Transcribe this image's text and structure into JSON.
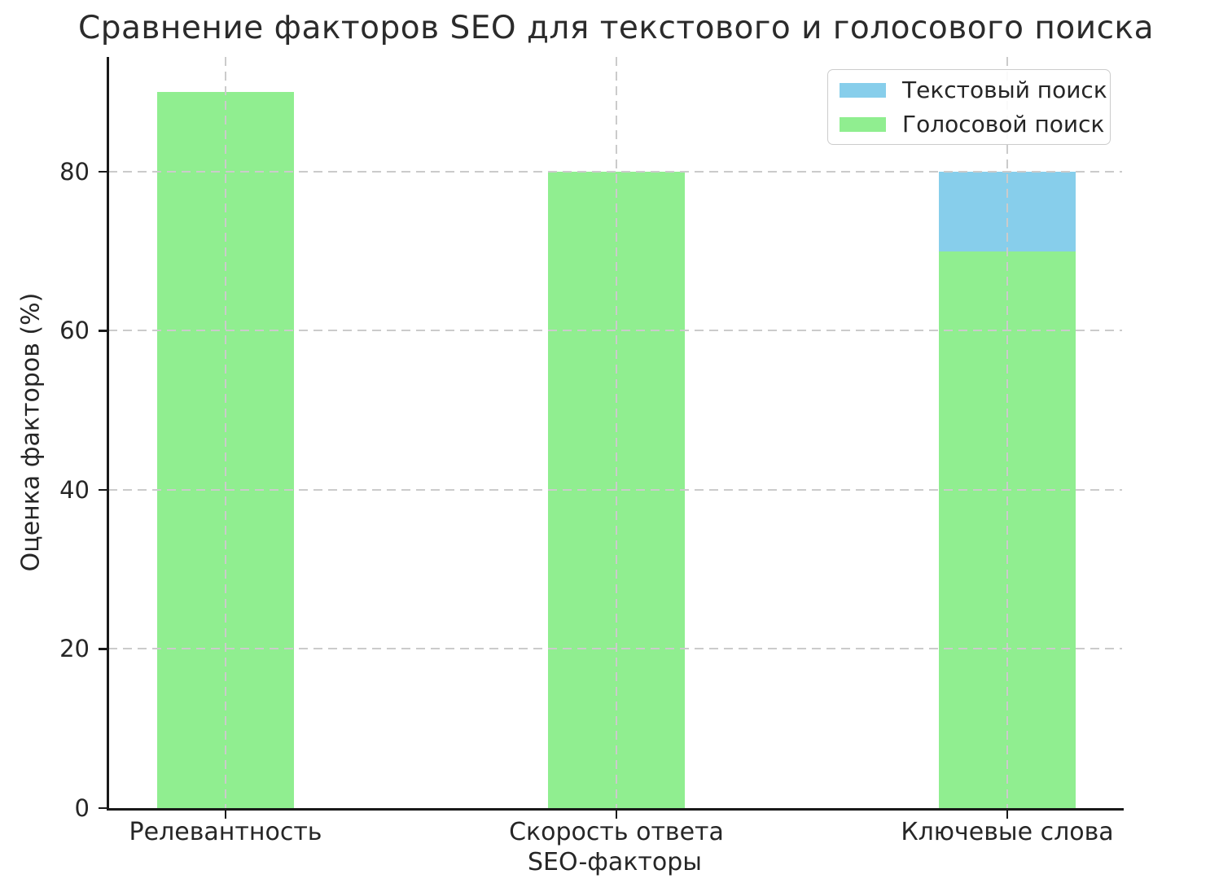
{
  "chart_data": {
    "type": "bar",
    "title": "Сравнение факторов SEO для текстового и голосового поиска",
    "xlabel": "SEO-факторы",
    "ylabel": "Оценка факторов (%)",
    "categories": [
      "Релевантность",
      "Скорость ответа",
      "Ключевые слова"
    ],
    "series": [
      {
        "name": "Текстовый поиск",
        "color": "#87ceeb",
        "values": [
          90,
          80,
          80
        ]
      },
      {
        "name": "Голосовой поиск",
        "color": "#90ee90",
        "values": [
          90,
          80,
          70
        ]
      }
    ],
    "bar_style": "overlaid: второй ряд нарисован поверх первого, синий виден только там, где выше зелёного",
    "yticks": [
      0,
      20,
      40,
      60,
      80
    ],
    "ylim": [
      0,
      94.42
    ],
    "grid": "dashed, over bars, horizontal at yticks and vertical at category centers",
    "legend_position": "upper right",
    "background_color": "#ffffff",
    "text_color": "#262626",
    "grid_color": "#cbcbcb"
  }
}
